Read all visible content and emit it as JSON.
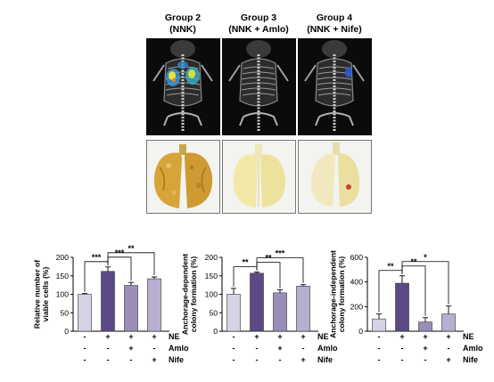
{
  "panels": [
    {
      "title": "Group 2",
      "subtitle": "(NNK)"
    },
    {
      "title": "Group 3",
      "subtitle": "(NNK + Amlo)"
    },
    {
      "title": "Group 4",
      "subtitle": "(NNK + Nife)"
    }
  ],
  "colors": {
    "light_bar": "#d8d2e6",
    "dark_bar": "#5c4a84",
    "mid_bar": "#9a8db8",
    "nife_bar": "#b8aed0",
    "scan_bg": "#0b0b0b"
  },
  "charts": [
    {
      "ylabel_lines": [
        "Relative number of",
        "viable cells (%)"
      ],
      "ticks": [
        "0",
        "50",
        "100",
        "150",
        "200"
      ],
      "sig": [
        "***",
        "***",
        "**"
      ]
    },
    {
      "ylabel_lines": [
        "Anchorage-dependent",
        "colony formation (%)"
      ],
      "ticks": [
        "0",
        "50",
        "100",
        "150",
        "200"
      ],
      "sig": [
        "**",
        "**",
        "***"
      ]
    },
    {
      "ylabel_lines": [
        "Anchorage-independent",
        "colony formation (%)"
      ],
      "ticks": [
        "0",
        "200",
        "400",
        "600"
      ],
      "sig": [
        "**",
        "**",
        "*"
      ]
    }
  ],
  "treatment_rows": [
    {
      "label": "NE",
      "marks": [
        "-",
        "+",
        "+",
        "+"
      ]
    },
    {
      "label": "Amlo",
      "marks": [
        "-",
        "-",
        "+",
        "-"
      ]
    },
    {
      "label": "Nife",
      "marks": [
        "-",
        "-",
        "-",
        "+"
      ]
    }
  ],
  "chart_data": [
    {
      "type": "bar",
      "categories": [
        "Control",
        "NE",
        "NE + Amlo",
        "NE + Nife"
      ],
      "values": [
        100,
        162,
        124,
        142
      ],
      "errors": [
        2,
        12,
        8,
        5
      ],
      "ylabel": "Relative number of viable cells (%)",
      "ylim": [
        0,
        200
      ]
    },
    {
      "type": "bar",
      "categories": [
        "Control",
        "NE",
        "NE + Amlo",
        "NE + Nife"
      ],
      "values": [
        100,
        157,
        104,
        122
      ],
      "errors": [
        16,
        3,
        8,
        4
      ],
      "ylabel": "Anchorage-dependent colony formation (%)",
      "ylim": [
        0,
        200
      ]
    },
    {
      "type": "bar",
      "categories": [
        "Control",
        "NE",
        "NE + Amlo",
        "NE + Nife"
      ],
      "values": [
        100,
        390,
        75,
        140
      ],
      "errors": [
        40,
        60,
        35,
        65
      ],
      "ylabel": "Anchorage-independent colony formation (%)",
      "ylim": [
        0,
        600
      ]
    }
  ]
}
